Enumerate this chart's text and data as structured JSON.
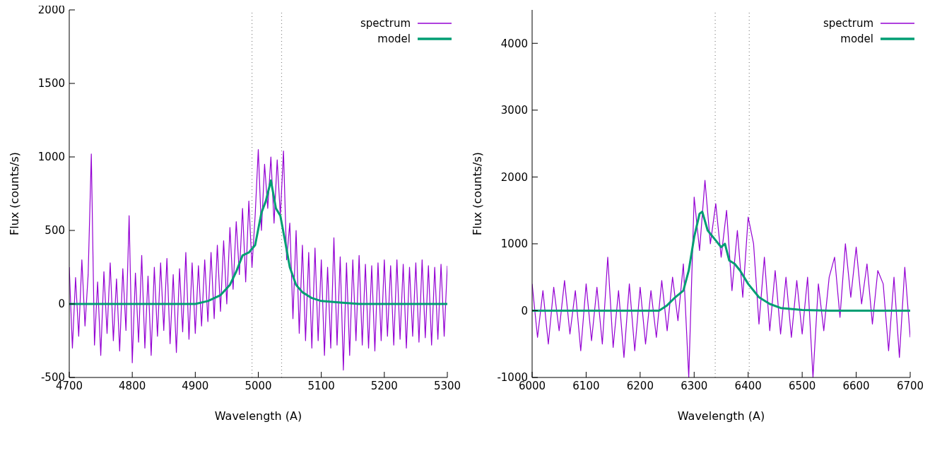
{
  "chart_data": [
    {
      "type": "line",
      "xlabel": "Wavelength (A)",
      "ylabel": "Flux (counts/s)",
      "xlim": [
        4700,
        5300
      ],
      "xticks": [
        4700,
        4800,
        4900,
        5000,
        5100,
        5200,
        5300
      ],
      "ylim": [
        -500,
        2000
      ],
      "yticks": [
        -500,
        0,
        500,
        1000,
        1500,
        2000
      ],
      "legend": "top right",
      "ref_lines": [
        {
          "axis": "x",
          "value": 4990,
          "color": "#808080",
          "line_style": "dotted"
        },
        {
          "axis": "x",
          "value": 5037,
          "color": "#808080",
          "line_style": "dotted"
        }
      ],
      "series": [
        {
          "name": "spectrum",
          "color": "#9400d3",
          "x": [
            4700,
            4705,
            4710,
            4715,
            4720,
            4725,
            4730,
            4735,
            4740,
            4745,
            4750,
            4755,
            4760,
            4765,
            4770,
            4775,
            4780,
            4785,
            4790,
            4795,
            4800,
            4805,
            4810,
            4815,
            4820,
            4825,
            4830,
            4835,
            4840,
            4845,
            4850,
            4855,
            4860,
            4865,
            4870,
            4875,
            4880,
            4885,
            4890,
            4895,
            4900,
            4905,
            4910,
            4915,
            4920,
            4925,
            4930,
            4935,
            4940,
            4945,
            4950,
            4955,
            4960,
            4965,
            4970,
            4975,
            4980,
            4985,
            4990,
            4995,
            5000,
            5005,
            5010,
            5015,
            5020,
            5025,
            5030,
            5035,
            5040,
            5045,
            5050,
            5055,
            5060,
            5065,
            5070,
            5075,
            5080,
            5085,
            5090,
            5095,
            5100,
            5105,
            5110,
            5115,
            5120,
            5125,
            5130,
            5135,
            5140,
            5145,
            5150,
            5155,
            5160,
            5165,
            5170,
            5175,
            5180,
            5185,
            5190,
            5195,
            5200,
            5205,
            5210,
            5215,
            5220,
            5225,
            5230,
            5235,
            5240,
            5245,
            5250,
            5255,
            5260,
            5265,
            5270,
            5275,
            5280,
            5285,
            5290,
            5295,
            5300
          ],
          "values": [
            250,
            -300,
            180,
            -220,
            300,
            -150,
            200,
            1020,
            -280,
            150,
            -350,
            220,
            -200,
            280,
            -250,
            170,
            -320,
            240,
            -180,
            600,
            -400,
            210,
            -260,
            330,
            -300,
            190,
            -350,
            250,
            -220,
            280,
            -180,
            310,
            -270,
            200,
            -330,
            240,
            -190,
            350,
            -240,
            280,
            -200,
            260,
            -150,
            300,
            -120,
            350,
            -100,
            400,
            -50,
            430,
            0,
            520,
            100,
            560,
            200,
            650,
            150,
            700,
            250,
            600,
            1050,
            500,
            950,
            650,
            1000,
            550,
            980,
            600,
            1040,
            300,
            550,
            -100,
            500,
            -200,
            400,
            -250,
            350,
            -300,
            380,
            -250,
            300,
            -350,
            250,
            -300,
            450,
            -280,
            320,
            -450,
            280,
            -350,
            300,
            -250,
            330,
            -280,
            270,
            -300,
            260,
            -320,
            280,
            -250,
            300,
            -220,
            260,
            -280,
            300,
            -240,
            270,
            -300,
            250,
            -220,
            280,
            -260,
            300,
            -230,
            260,
            -280,
            250,
            -240,
            270,
            -220,
            260
          ]
        },
        {
          "name": "model",
          "color": "#009e73",
          "x": [
            4700,
            4900,
            4920,
            4940,
            4955,
            4965,
            4975,
            4985,
            4995,
            5005,
            5012,
            5020,
            5028,
            5035,
            5042,
            5050,
            5060,
            5070,
            5085,
            5100,
            5130,
            5160,
            5300
          ],
          "values": [
            0,
            0,
            20,
            60,
            130,
            220,
            330,
            350,
            400,
            620,
            700,
            840,
            650,
            600,
            440,
            250,
            130,
            80,
            40,
            20,
            10,
            0,
            0
          ]
        }
      ]
    },
    {
      "type": "line",
      "xlabel": "Wavelength (A)",
      "ylabel": "Flux (counts/s)",
      "xlim": [
        6000,
        6700
      ],
      "xticks": [
        6000,
        6100,
        6200,
        6300,
        6400,
        6500,
        6600,
        6700
      ],
      "ylim": [
        -1000,
        4500
      ],
      "yticks": [
        -1000,
        0,
        1000,
        2000,
        3000,
        4000
      ],
      "legend": "top right",
      "ref_lines": [
        {
          "axis": "x",
          "value": 6339,
          "color": "#808080",
          "line_style": "dotted"
        },
        {
          "axis": "x",
          "value": 6402,
          "color": "#808080",
          "line_style": "dotted"
        }
      ],
      "series": [
        {
          "name": "spectrum",
          "color": "#9400d3",
          "x": [
            6000,
            6010,
            6020,
            6030,
            6040,
            6050,
            6060,
            6070,
            6080,
            6090,
            6100,
            6110,
            6120,
            6130,
            6140,
            6150,
            6160,
            6170,
            6180,
            6190,
            6200,
            6210,
            6220,
            6230,
            6240,
            6250,
            6260,
            6270,
            6280,
            6290,
            6300,
            6310,
            6320,
            6330,
            6340,
            6350,
            6360,
            6370,
            6380,
            6390,
            6400,
            6410,
            6420,
            6430,
            6440,
            6450,
            6460,
            6470,
            6480,
            6490,
            6500,
            6510,
            6520,
            6530,
            6540,
            6550,
            6560,
            6570,
            6580,
            6590,
            6600,
            6610,
            6620,
            6630,
            6640,
            6650,
            6660,
            6670,
            6680,
            6690,
            6700
          ],
          "values": [
            400,
            -400,
            300,
            -500,
            350,
            -300,
            450,
            -350,
            300,
            -600,
            400,
            -450,
            350,
            -500,
            800,
            -550,
            300,
            -700,
            400,
            -600,
            350,
            -500,
            300,
            -400,
            450,
            -300,
            500,
            -150,
            700,
            -1000,
            1700,
            900,
            1950,
            1000,
            1600,
            800,
            1500,
            300,
            1200,
            200,
            1400,
            1000,
            -200,
            800,
            -300,
            600,
            -350,
            500,
            -400,
            450,
            -350,
            500,
            -1000,
            400,
            -300,
            500,
            800,
            -100,
            1000,
            200,
            950,
            100,
            700,
            -200,
            600,
            400,
            -600,
            500,
            -700,
            650,
            -400
          ]
        },
        {
          "name": "model",
          "color": "#009e73",
          "x": [
            6000,
            6235,
            6250,
            6265,
            6280,
            6290,
            6300,
            6310,
            6315,
            6325,
            6340,
            6350,
            6357,
            6365,
            6375,
            6385,
            6400,
            6420,
            6440,
            6460,
            6500,
            6550,
            6700
          ],
          "values": [
            0,
            0,
            80,
            200,
            300,
            600,
            1100,
            1450,
            1480,
            1200,
            1050,
            950,
            1000,
            750,
            700,
            600,
            400,
            200,
            100,
            40,
            10,
            0,
            0
          ]
        }
      ]
    }
  ]
}
